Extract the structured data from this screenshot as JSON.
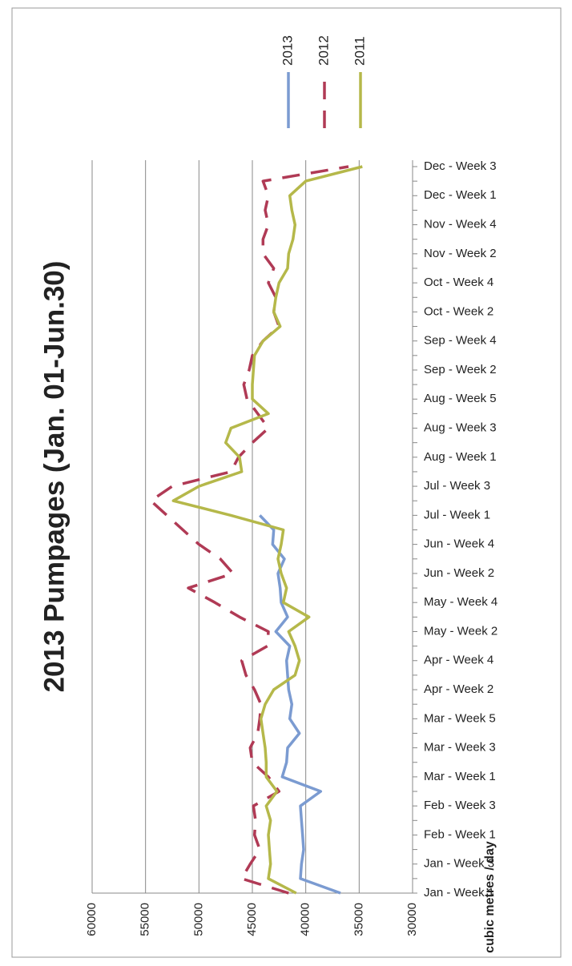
{
  "chart_data": {
    "type": "line",
    "title": "2013 Pumpages (Jan. 01-Jun.30)",
    "y_label": "cubic metres / day",
    "categories": [
      "Jan - Week 1",
      null,
      "Jan - Week 3",
      null,
      "Feb - Week 1",
      null,
      "Feb - Week 3",
      null,
      "Mar - Week 1",
      null,
      "Mar - Week 3",
      null,
      "Mar - Week 5",
      null,
      "Apr - Week 2",
      null,
      "Apr - Week 4",
      null,
      "May - Week 2",
      null,
      "May - Week 4",
      null,
      "Jun - Week 2",
      null,
      "Jun - Week 4",
      null,
      "Jul - Week 1",
      null,
      "Jul - Week 3",
      null,
      "Aug - Week 1",
      null,
      "Aug - Week 3",
      null,
      "Aug - Week 5",
      null,
      "Sep - Week 2",
      null,
      "Sep - Week 4",
      null,
      "Oct - Week 2",
      null,
      "Oct - Week 4",
      null,
      "Nov - Week 2",
      null,
      "Nov - Week 4",
      null,
      "Dec - Week 1",
      null,
      "Dec - Week 3"
    ],
    "series": [
      {
        "name": "2013",
        "color": "#7b9bd1",
        "dash": false,
        "values": [
          36750,
          40500,
          40400,
          40200,
          40300,
          40400,
          40500,
          38600,
          42200,
          41800,
          41700,
          40600,
          41500,
          41300,
          41600,
          41700,
          41800,
          41500,
          42800,
          41700,
          42300,
          42400,
          42600,
          42000,
          43100,
          43000,
          44300,
          null,
          null,
          null,
          null,
          null,
          null,
          null,
          null,
          null,
          null,
          null,
          null,
          null,
          null,
          null,
          null,
          null,
          null,
          null,
          null,
          null,
          null,
          null,
          null
        ]
      },
      {
        "name": "2012",
        "color": "#b03a55",
        "dash": true,
        "values": [
          41600,
          46000,
          45200,
          44300,
          44800,
          44700,
          44900,
          42500,
          43500,
          45000,
          45200,
          44500,
          44300,
          44200,
          44800,
          45600,
          46000,
          43600,
          43500,
          46200,
          48500,
          51000,
          46800,
          48000,
          50000,
          51500,
          53000,
          54500,
          52500,
          47000,
          46300,
          45000,
          43500,
          44500,
          45500,
          45800,
          45300,
          45000,
          44000,
          42500,
          43000,
          42800,
          43500,
          43000,
          44000,
          44000,
          43500,
          43800,
          43500,
          44000,
          36000
        ]
      },
      {
        "name": "2011",
        "color": "#b5b84a",
        "dash": false,
        "values": [
          40900,
          43500,
          43300,
          43400,
          43500,
          43300,
          43700,
          42700,
          43700,
          43700,
          43800,
          44000,
          44200,
          43800,
          43000,
          41000,
          40600,
          41000,
          41600,
          39700,
          42100,
          41800,
          42300,
          42600,
          42300,
          42100,
          47000,
          52400,
          50000,
          46000,
          46200,
          47500,
          47000,
          43500,
          45000,
          45000,
          44900,
          44800,
          44000,
          42400,
          43000,
          42800,
          42500,
          41700,
          41600,
          41200,
          41000,
          41300,
          41500,
          40000,
          34700
        ]
      }
    ],
    "ylim": [
      30000,
      60000
    ],
    "yticks": [
      30000,
      35000,
      40000,
      45000,
      50000,
      55000,
      60000
    ],
    "grid": true,
    "legend": "right"
  }
}
